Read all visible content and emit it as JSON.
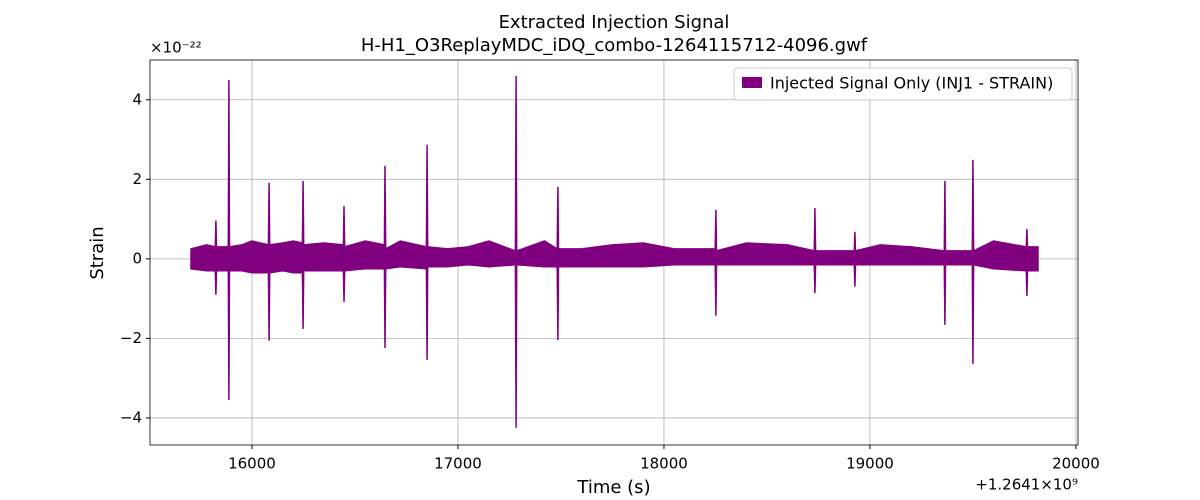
{
  "chart_data": {
    "type": "area",
    "title": "Extracted Injection Signal",
    "subtitle": "H-H1_O3ReplayMDC_iDQ_combo-1264115712-4096.gwf",
    "x_label": "Time (s)",
    "y_label": "Strain",
    "x_offset_label": "+1.2641×10⁹",
    "y_scale_label": "×10⁻²²",
    "legend": "upper right",
    "grid": true,
    "xlim": [
      15505,
      20010
    ],
    "xticks": [
      16000,
      17000,
      18000,
      19000,
      20000
    ],
    "ylim": [
      -4.68,
      5.0
    ],
    "yticks": [
      {
        "value": -4,
        "label": "−4"
      },
      {
        "value": -2,
        "label": "−2"
      },
      0,
      2,
      4
    ],
    "x": [
      15704,
      15780,
      15822,
      15825,
      15828,
      15885,
      15888,
      15891,
      15950,
      16000,
      16080,
      16083,
      16086,
      16150,
      16200,
      16245,
      16248,
      16251,
      16350,
      16444,
      16447,
      16450,
      16550,
      16643,
      16646,
      16649,
      16720,
      16847,
      16850,
      16853,
      16950,
      17050,
      17150,
      17279,
      17282,
      17285,
      17420,
      17482,
      17485,
      17488,
      17600,
      17750,
      17900,
      18050,
      18249,
      18252,
      18255,
      18400,
      18600,
      18730,
      18733,
      18736,
      18924,
      18927,
      18930,
      19050,
      19200,
      19361,
      19364,
      19367,
      19497,
      19500,
      19503,
      19600,
      19759,
      19762,
      19765,
      19816
    ],
    "series": [
      {
        "name": "Injected Signal Only (INJ1 - STRAIN)",
        "color": "#800080",
        "upper": [
          0.25,
          0.35,
          0.3,
          0.96,
          0.3,
          0.3,
          4.5,
          0.3,
          0.35,
          0.45,
          0.35,
          1.91,
          0.35,
          0.4,
          0.45,
          0.4,
          1.96,
          0.35,
          0.4,
          0.35,
          1.33,
          0.3,
          0.45,
          0.35,
          2.34,
          0.25,
          0.45,
          0.3,
          2.87,
          0.3,
          0.25,
          0.3,
          0.45,
          0.2,
          4.6,
          0.2,
          0.45,
          0.25,
          1.81,
          0.25,
          0.25,
          0.35,
          0.4,
          0.25,
          0.25,
          1.23,
          0.2,
          0.4,
          0.35,
          0.2,
          1.28,
          0.2,
          0.2,
          0.68,
          0.2,
          0.35,
          0.3,
          0.2,
          1.96,
          0.2,
          0.2,
          2.49,
          0.2,
          0.45,
          0.3,
          0.75,
          0.3,
          0.3
        ],
        "lower": [
          -0.25,
          -0.3,
          -0.3,
          -0.9,
          -0.3,
          -0.3,
          -3.55,
          -0.3,
          -0.3,
          -0.35,
          -0.35,
          -2.06,
          -0.35,
          -0.3,
          -0.35,
          -0.35,
          -1.76,
          -0.3,
          -0.3,
          -0.3,
          -1.08,
          -0.3,
          -0.25,
          -0.25,
          -2.24,
          -0.25,
          -0.2,
          -0.25,
          -2.54,
          -0.2,
          -0.2,
          -0.15,
          -0.2,
          -0.15,
          -4.25,
          -0.15,
          -0.2,
          -0.2,
          -2.04,
          -0.2,
          -0.2,
          -0.2,
          -0.2,
          -0.15,
          -0.15,
          -1.43,
          -0.15,
          -0.15,
          -0.15,
          -0.15,
          -0.86,
          -0.15,
          -0.15,
          -0.7,
          -0.15,
          -0.15,
          -0.15,
          -0.15,
          -1.66,
          -0.15,
          -0.15,
          -2.64,
          -0.15,
          -0.25,
          -0.3,
          -0.93,
          -0.3,
          -0.3
        ]
      }
    ]
  }
}
